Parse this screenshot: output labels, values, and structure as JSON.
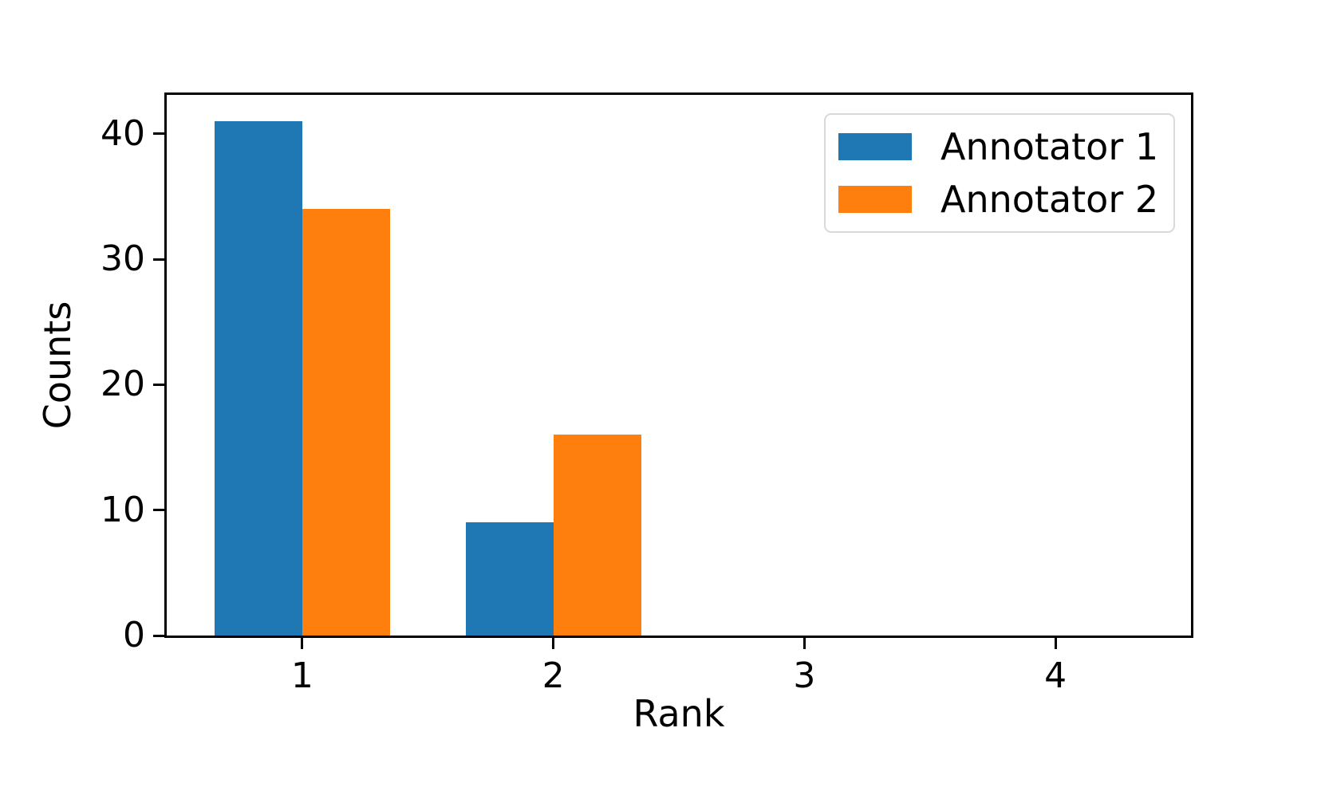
{
  "figure": {
    "background": "#ffffff",
    "spine_color": "#000000"
  },
  "chart_data": {
    "type": "bar",
    "title": "",
    "xlabel": "Rank",
    "ylabel": "Counts",
    "categories": [
      1,
      2,
      3,
      4
    ],
    "series": [
      {
        "name": "Annotator 1",
        "color": "#1f77b4",
        "values": [
          41,
          9,
          0,
          0
        ]
      },
      {
        "name": "Annotator 2",
        "color": "#ff7f0e",
        "values": [
          34,
          16,
          0,
          0
        ]
      }
    ],
    "bar_width": 0.35,
    "xlim": [
      0.46,
      4.54
    ],
    "ylim": [
      0,
      43.1
    ],
    "xticks": [
      1,
      2,
      3,
      4
    ],
    "yticks": [
      0,
      10,
      20,
      30,
      40
    ],
    "grid": false,
    "legend_position": "upper right"
  }
}
